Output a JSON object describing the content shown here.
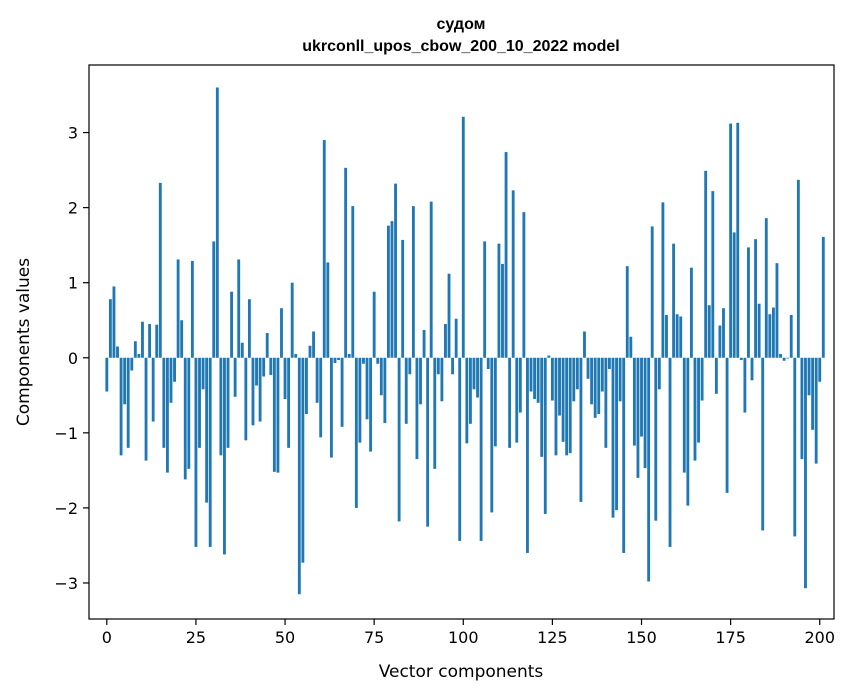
{
  "chart_data": {
    "type": "bar",
    "title_line1": "судом",
    "title_line2": "ukrconll_upos_cbow_200_10_2022 model",
    "xlabel": "Vector components",
    "ylabel": "Components values",
    "xlim": [
      -5,
      204
    ],
    "ylim": [
      -3.48,
      3.9
    ],
    "xticks": [
      0,
      25,
      50,
      75,
      100,
      125,
      150,
      175,
      200
    ],
    "yticks": [
      -3,
      -2,
      -1,
      0,
      1,
      2,
      3
    ],
    "ytick_labels": [
      "−3",
      "−2",
      "−1",
      "0",
      "1",
      "2",
      "3"
    ],
    "bar_color": "#1f77b4",
    "values": [
      -0.45,
      0.78,
      0.95,
      0.15,
      -1.3,
      -0.62,
      -1.2,
      -0.17,
      0.22,
      0.05,
      0.48,
      -1.37,
      0.45,
      -0.85,
      0.44,
      2.33,
      -1.2,
      -1.53,
      -0.6,
      -0.32,
      1.31,
      0.5,
      -1.62,
      -1.48,
      1.29,
      -2.52,
      -1.2,
      -0.42,
      -1.93,
      -2.52,
      1.55,
      3.6,
      -1.3,
      -2.62,
      -1.2,
      0.88,
      -0.52,
      1.31,
      0.2,
      -1.1,
      0.78,
      -0.9,
      -0.37,
      -0.85,
      -0.25,
      0.33,
      -0.23,
      -1.52,
      -1.53,
      0.66,
      -0.55,
      -1.2,
      1.0,
      0.05,
      -3.15,
      -2.73,
      -0.75,
      0.16,
      0.35,
      -0.6,
      -1.06,
      2.9,
      1.27,
      -1.33,
      -0.07,
      -0.03,
      -0.92,
      2.53,
      0.05,
      2.02,
      -2.0,
      -1.13,
      -0.08,
      -0.82,
      -1.25,
      0.88,
      -0.08,
      -0.5,
      -0.87,
      1.76,
      1.82,
      2.32,
      -2.18,
      1.57,
      -0.88,
      -0.22,
      2.02,
      -1.35,
      -0.62,
      0.37,
      -2.25,
      2.08,
      -1.48,
      -0.22,
      -0.58,
      0.45,
      1.12,
      -0.22,
      0.52,
      -2.44,
      3.21,
      -1.14,
      -0.88,
      -0.42,
      -0.53,
      -2.44,
      1.55,
      -0.15,
      -2.06,
      -1.18,
      1.52,
      1.25,
      2.74,
      -1.2,
      2.23,
      -1.13,
      -0.73,
      1.94,
      -2.6,
      -0.45,
      -0.55,
      -0.6,
      -1.32,
      -2.08,
      0.03,
      -0.57,
      -1.3,
      -0.77,
      -1.12,
      -1.3,
      -1.27,
      -0.58,
      -0.42,
      -1.92,
      0.35,
      -0.28,
      -0.62,
      -0.8,
      -0.75,
      -0.45,
      -1.2,
      -0.15,
      -2.13,
      -2.03,
      -0.58,
      -2.6,
      1.22,
      0.28,
      -1.17,
      -1.6,
      -1.05,
      -1.47,
      -2.98,
      1.75,
      -2.17,
      -0.42,
      2.07,
      0.57,
      -2.52,
      1.52,
      0.58,
      0.55,
      -1.53,
      -1.97,
      1.2,
      -1.37,
      -1.13,
      -0.57,
      2.49,
      0.7,
      2.22,
      -0.48,
      0.43,
      0.66,
      -1.8,
      3.12,
      1.67,
      3.13,
      -0.03,
      -0.73,
      1.47,
      -0.3,
      1.58,
      0.72,
      -2.3,
      1.86,
      0.58,
      0.67,
      1.26,
      0.05,
      -0.04,
      -0.01,
      0.57,
      -2.38,
      2.37,
      -1.35,
      -3.07,
      -0.5,
      -0.96,
      -1.41,
      -0.32,
      1.61
    ]
  }
}
